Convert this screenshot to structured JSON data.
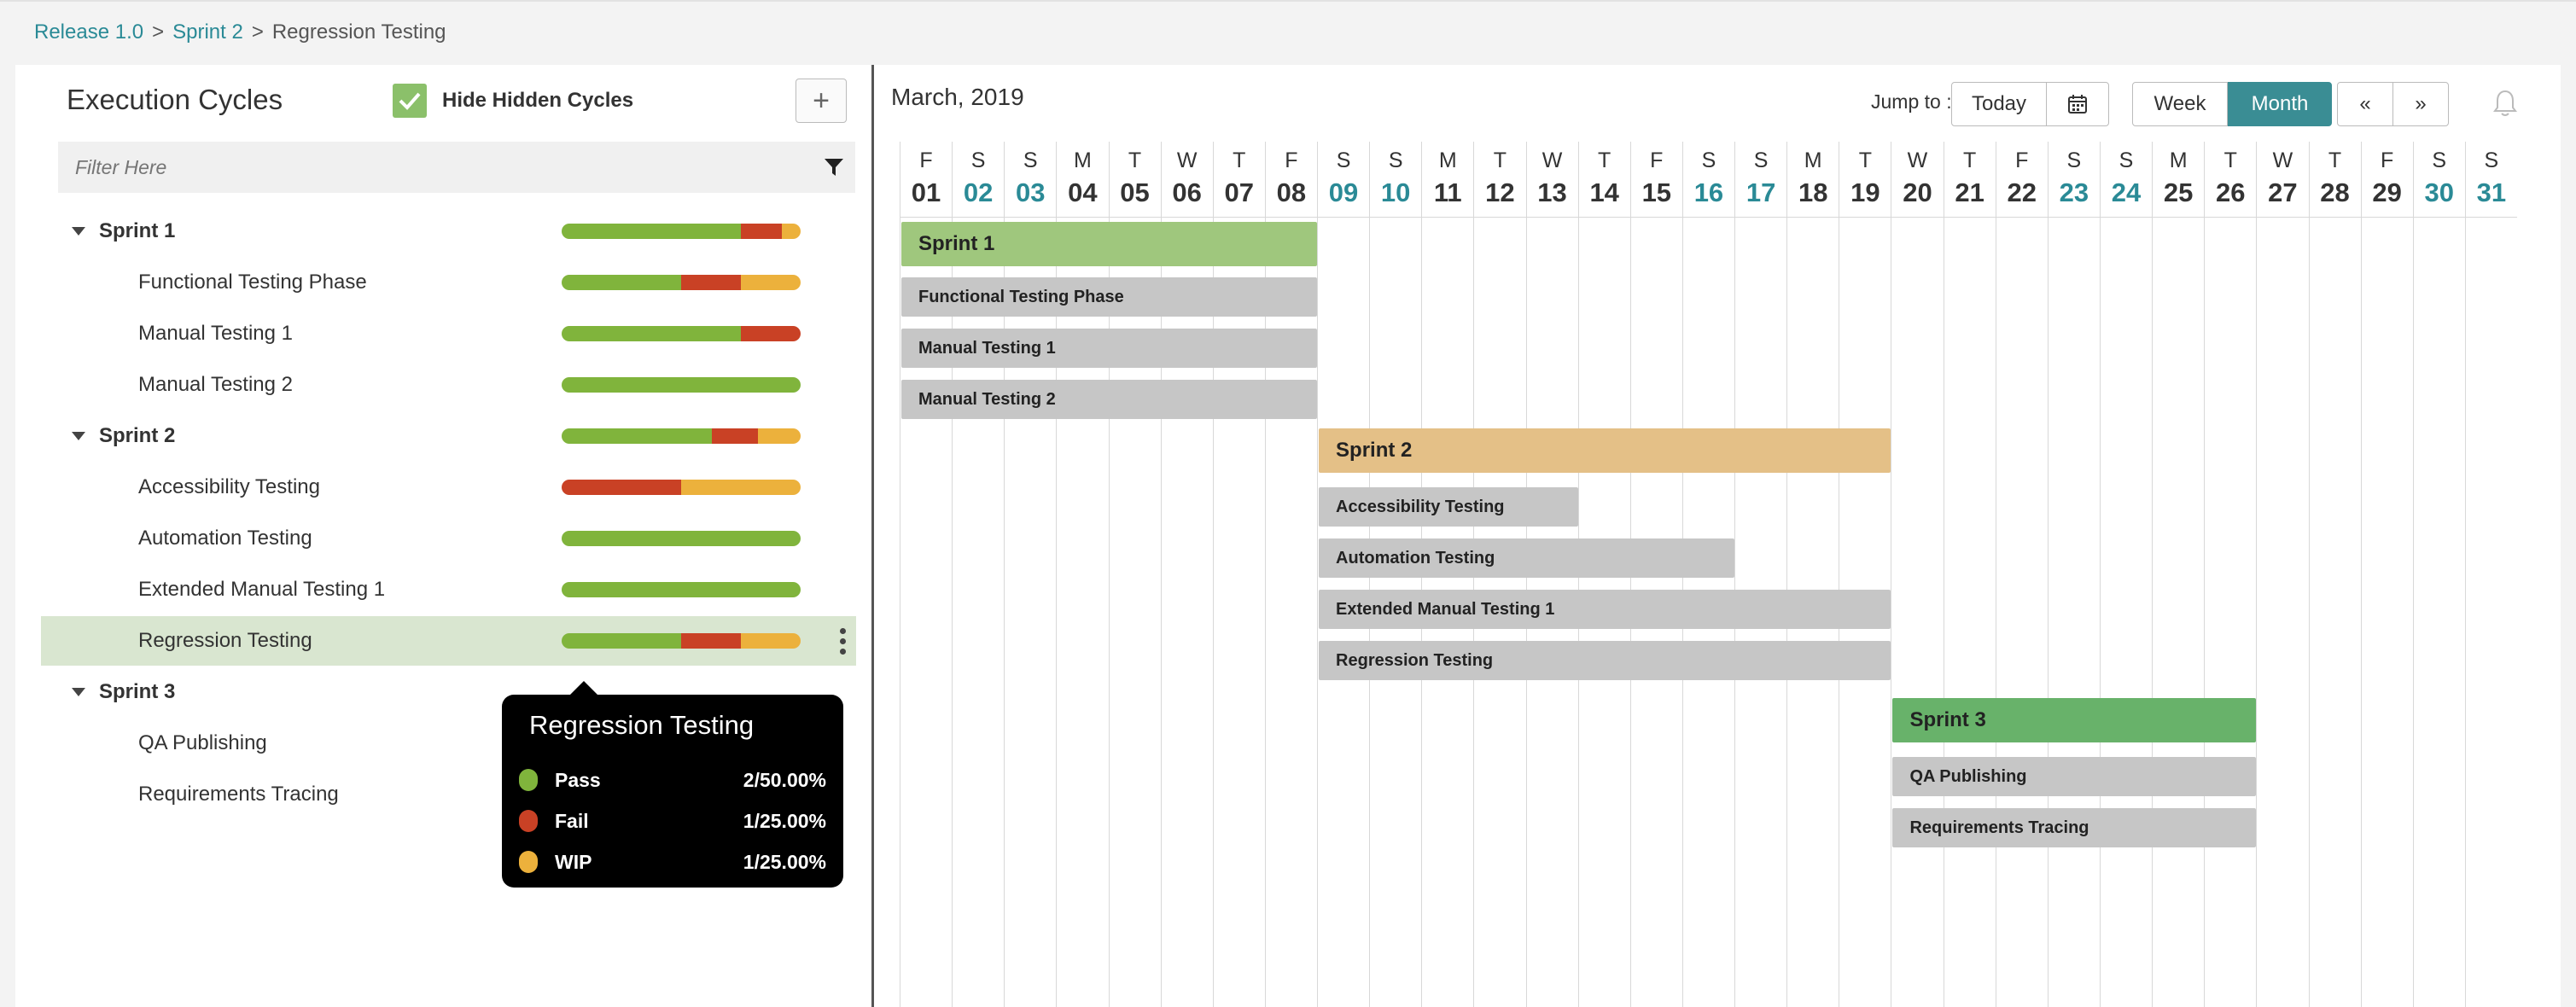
{
  "breadcrumb": {
    "items": [
      "Release 1.0",
      "Sprint 2",
      "Regression Testing"
    ],
    "sep": ">"
  },
  "left": {
    "title": "Execution Cycles",
    "hide_hidden_label": "Hide Hidden Cycles",
    "hide_hidden_checked": true,
    "add_label": "+",
    "filter_placeholder": "Filter Here"
  },
  "colors": {
    "pass": "#80b43c",
    "fail": "#c94125",
    "wip": "#ecb13c",
    "accent": "#3a8d94",
    "sprint1": "#9fc77d",
    "sprint2": "#e4c087",
    "sprint3": "#68b26a",
    "cycle": "#c6c6c6",
    "selected_row": "#d9e6d0"
  },
  "tree": [
    {
      "label": "Sprint 1",
      "type": "group",
      "progress": {
        "pass": 0.75,
        "fail": 0.17,
        "wip": 0.08
      }
    },
    {
      "label": "Functional Testing Phase",
      "type": "child",
      "progress": {
        "pass": 0.5,
        "fail": 0.25,
        "wip": 0.25
      }
    },
    {
      "label": "Manual Testing 1",
      "type": "child",
      "progress": {
        "pass": 0.75,
        "fail": 0.25,
        "wip": 0
      }
    },
    {
      "label": "Manual Testing 2",
      "type": "child",
      "progress": {
        "pass": 1,
        "fail": 0,
        "wip": 0
      }
    },
    {
      "label": "Sprint 2",
      "type": "group",
      "progress": {
        "pass": 0.63,
        "fail": 0.19,
        "wip": 0.18
      }
    },
    {
      "label": "Accessibility Testing",
      "type": "child",
      "progress": {
        "pass": 0,
        "fail": 0.5,
        "wip": 0.5
      }
    },
    {
      "label": "Automation Testing",
      "type": "child",
      "progress": {
        "pass": 1,
        "fail": 0,
        "wip": 0
      }
    },
    {
      "label": "Extended Manual Testing 1",
      "type": "child",
      "progress": {
        "pass": 1,
        "fail": 0,
        "wip": 0
      }
    },
    {
      "label": "Regression Testing",
      "type": "child",
      "selected": true,
      "progress": {
        "pass": 0.5,
        "fail": 0.25,
        "wip": 0.25
      }
    },
    {
      "label": "Sprint 3",
      "type": "group"
    },
    {
      "label": "QA Publishing",
      "type": "child"
    },
    {
      "label": "Requirements Tracing",
      "type": "child"
    }
  ],
  "tooltip": {
    "title": "Regression Testing",
    "rows": [
      {
        "name": "Pass",
        "value": "2/50.00%",
        "color": "#80b43c"
      },
      {
        "name": "Fail",
        "value": "1/25.00%",
        "color": "#c94125"
      },
      {
        "name": "WIP",
        "value": "1/25.00%",
        "color": "#ecb13c"
      }
    ]
  },
  "calendar": {
    "month_label": "March, 2019",
    "jump_to_label": "Jump to :",
    "today_label": "Today",
    "week_label": "Week",
    "month_btn_label": "Month",
    "view_active": "Month",
    "prev_label": "«",
    "next_label": "»",
    "days": [
      {
        "l": "F",
        "n": "01"
      },
      {
        "l": "S",
        "n": "02",
        "w": true
      },
      {
        "l": "S",
        "n": "03",
        "w": true
      },
      {
        "l": "M",
        "n": "04"
      },
      {
        "l": "T",
        "n": "05"
      },
      {
        "l": "W",
        "n": "06"
      },
      {
        "l": "T",
        "n": "07"
      },
      {
        "l": "F",
        "n": "08"
      },
      {
        "l": "S",
        "n": "09",
        "w": true
      },
      {
        "l": "S",
        "n": "10",
        "w": true
      },
      {
        "l": "M",
        "n": "11"
      },
      {
        "l": "T",
        "n": "12"
      },
      {
        "l": "W",
        "n": "13"
      },
      {
        "l": "T",
        "n": "14"
      },
      {
        "l": "F",
        "n": "15"
      },
      {
        "l": "S",
        "n": "16",
        "w": true
      },
      {
        "l": "S",
        "n": "17",
        "w": true
      },
      {
        "l": "M",
        "n": "18"
      },
      {
        "l": "T",
        "n": "19"
      },
      {
        "l": "W",
        "n": "20"
      },
      {
        "l": "T",
        "n": "21"
      },
      {
        "l": "F",
        "n": "22"
      },
      {
        "l": "S",
        "n": "23",
        "w": true
      },
      {
        "l": "S",
        "n": "24",
        "w": true
      },
      {
        "l": "M",
        "n": "25"
      },
      {
        "l": "T",
        "n": "26"
      },
      {
        "l": "W",
        "n": "27"
      },
      {
        "l": "T",
        "n": "28"
      },
      {
        "l": "F",
        "n": "29"
      },
      {
        "l": "S",
        "n": "30",
        "w": true
      },
      {
        "l": "S",
        "n": "31",
        "w": true
      }
    ],
    "bars": [
      {
        "label": "Sprint 1",
        "start": "01",
        "end": "08",
        "kind": "group",
        "color": "#9fc77d"
      },
      {
        "label": "Functional Testing Phase",
        "start": "01",
        "end": "08",
        "kind": "cycle"
      },
      {
        "label": "Manual Testing 1",
        "start": "01",
        "end": "08",
        "kind": "cycle"
      },
      {
        "label": "Manual Testing 2",
        "start": "01",
        "end": "08",
        "kind": "cycle"
      },
      {
        "label": "Sprint 2",
        "start": "09",
        "end": "19",
        "kind": "group",
        "color": "#e4c087"
      },
      {
        "label": "Accessibility Testing",
        "start": "09",
        "end": "13",
        "kind": "cycle"
      },
      {
        "label": "Automation Testing",
        "start": "09",
        "end": "16",
        "kind": "cycle"
      },
      {
        "label": "Extended Manual Testing 1",
        "start": "09",
        "end": "19",
        "kind": "cycle"
      },
      {
        "label": "Regression Testing",
        "start": "09",
        "end": "19",
        "kind": "cycle"
      },
      {
        "label": "Sprint 3",
        "start": "20",
        "end": "26",
        "kind": "group",
        "color": "#68b26a"
      },
      {
        "label": "QA Publishing",
        "start": "20",
        "end": "26",
        "kind": "cycle"
      },
      {
        "label": "Requirements Tracing",
        "start": "20",
        "end": "26",
        "kind": "cycle"
      }
    ]
  }
}
